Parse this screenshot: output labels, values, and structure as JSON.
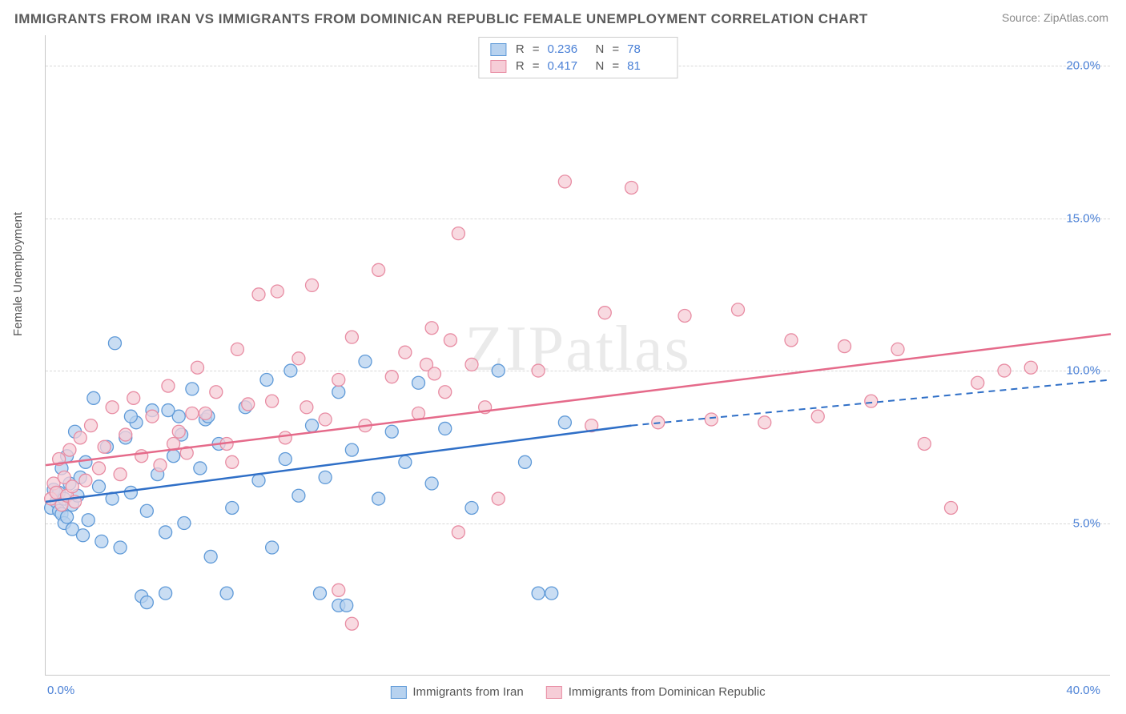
{
  "title": "IMMIGRANTS FROM IRAN VS IMMIGRANTS FROM DOMINICAN REPUBLIC FEMALE UNEMPLOYMENT CORRELATION CHART",
  "source": "Source: ZipAtlas.com",
  "watermark": "ZIPatlas",
  "ylabel": "Female Unemployment",
  "xlim": [
    0,
    40
  ],
  "ylim": [
    0,
    21
  ],
  "xtick_labels": {
    "min": "0.0%",
    "max": "40.0%"
  },
  "ytick_positions": [
    5,
    10,
    15,
    20
  ],
  "ytick_labels": [
    "5.0%",
    "10.0%",
    "15.0%",
    "20.0%"
  ],
  "series": [
    {
      "name": "Immigrants from Iran",
      "color_fill": "#b7d2ef",
      "color_stroke": "#5f9ad8",
      "line_color": "#2f6fc7",
      "R": "0.236",
      "N": "78",
      "marker_radius": 8,
      "trend": {
        "x1": 0,
        "y1": 5.7,
        "x2": 22,
        "y2": 8.2,
        "dash_x2": 40,
        "dash_y2": 9.7
      },
      "points": [
        [
          0.2,
          5.5
        ],
        [
          0.3,
          6.1
        ],
        [
          0.4,
          5.7
        ],
        [
          0.5,
          5.4
        ],
        [
          0.5,
          6.0
        ],
        [
          0.6,
          5.3
        ],
        [
          0.6,
          6.8
        ],
        [
          0.7,
          5.0
        ],
        [
          0.7,
          5.8
        ],
        [
          0.8,
          7.2
        ],
        [
          0.8,
          5.2
        ],
        [
          0.9,
          6.3
        ],
        [
          1.0,
          5.6
        ],
        [
          1.0,
          4.8
        ],
        [
          1.1,
          8.0
        ],
        [
          1.2,
          5.9
        ],
        [
          1.3,
          6.5
        ],
        [
          1.4,
          4.6
        ],
        [
          1.5,
          7.0
        ],
        [
          1.6,
          5.1
        ],
        [
          1.8,
          9.1
        ],
        [
          2.0,
          6.2
        ],
        [
          2.1,
          4.4
        ],
        [
          2.3,
          7.5
        ],
        [
          2.5,
          5.8
        ],
        [
          2.6,
          10.9
        ],
        [
          2.8,
          4.2
        ],
        [
          3.0,
          7.8
        ],
        [
          3.2,
          6.0
        ],
        [
          3.4,
          8.3
        ],
        [
          3.6,
          2.6
        ],
        [
          3.8,
          5.4
        ],
        [
          4.0,
          8.7
        ],
        [
          4.2,
          6.6
        ],
        [
          4.5,
          2.7
        ],
        [
          4.5,
          4.7
        ],
        [
          4.8,
          7.2
        ],
        [
          5.0,
          8.5
        ],
        [
          5.2,
          5.0
        ],
        [
          5.5,
          9.4
        ],
        [
          5.8,
          6.8
        ],
        [
          6.0,
          8.4
        ],
        [
          6.2,
          3.9
        ],
        [
          6.5,
          7.6
        ],
        [
          6.8,
          2.7
        ],
        [
          7.0,
          5.5
        ],
        [
          7.5,
          8.8
        ],
        [
          8.0,
          6.4
        ],
        [
          8.3,
          9.7
        ],
        [
          8.5,
          4.2
        ],
        [
          9.0,
          7.1
        ],
        [
          9.2,
          10.0
        ],
        [
          9.5,
          5.9
        ],
        [
          10.0,
          8.2
        ],
        [
          10.3,
          2.7
        ],
        [
          10.5,
          6.5
        ],
        [
          11.0,
          9.3
        ],
        [
          11.0,
          2.3
        ],
        [
          11.3,
          2.3
        ],
        [
          11.5,
          7.4
        ],
        [
          12.0,
          10.3
        ],
        [
          12.5,
          5.8
        ],
        [
          13.0,
          8.0
        ],
        [
          13.5,
          7.0
        ],
        [
          14.0,
          9.6
        ],
        [
          14.5,
          6.3
        ],
        [
          15.0,
          8.1
        ],
        [
          16.0,
          5.5
        ],
        [
          17.0,
          10.0
        ],
        [
          18.0,
          7.0
        ],
        [
          18.5,
          2.7
        ],
        [
          19.0,
          2.7
        ],
        [
          19.5,
          8.3
        ],
        [
          3.8,
          2.4
        ],
        [
          3.2,
          8.5
        ],
        [
          4.6,
          8.7
        ],
        [
          5.1,
          7.9
        ],
        [
          6.1,
          8.5
        ]
      ]
    },
    {
      "name": "Immigrants from Dominican Republic",
      "color_fill": "#f6cdd7",
      "color_stroke": "#e88ca3",
      "line_color": "#e56a8a",
      "R": "0.417",
      "N": "81",
      "marker_radius": 8,
      "trend": {
        "x1": 0,
        "y1": 6.9,
        "x2": 40,
        "y2": 11.2
      },
      "points": [
        [
          0.2,
          5.8
        ],
        [
          0.3,
          6.3
        ],
        [
          0.4,
          6.0
        ],
        [
          0.5,
          7.1
        ],
        [
          0.6,
          5.6
        ],
        [
          0.7,
          6.5
        ],
        [
          0.8,
          5.9
        ],
        [
          0.9,
          7.4
        ],
        [
          1.0,
          6.2
        ],
        [
          1.1,
          5.7
        ],
        [
          1.3,
          7.8
        ],
        [
          1.5,
          6.4
        ],
        [
          1.7,
          8.2
        ],
        [
          2.0,
          6.8
        ],
        [
          2.2,
          7.5
        ],
        [
          2.5,
          8.8
        ],
        [
          2.8,
          6.6
        ],
        [
          3.0,
          7.9
        ],
        [
          3.3,
          9.1
        ],
        [
          3.6,
          7.2
        ],
        [
          4.0,
          8.5
        ],
        [
          4.3,
          6.9
        ],
        [
          4.6,
          9.5
        ],
        [
          5.0,
          8.0
        ],
        [
          5.3,
          7.3
        ],
        [
          5.7,
          10.1
        ],
        [
          6.0,
          8.6
        ],
        [
          6.4,
          9.3
        ],
        [
          6.8,
          7.6
        ],
        [
          7.2,
          10.7
        ],
        [
          7.6,
          8.9
        ],
        [
          8.0,
          12.5
        ],
        [
          8.5,
          9.0
        ],
        [
          9.0,
          7.8
        ],
        [
          9.5,
          10.4
        ],
        [
          10.0,
          12.8
        ],
        [
          10.5,
          8.4
        ],
        [
          11.0,
          9.7
        ],
        [
          11.5,
          11.1
        ],
        [
          11.0,
          2.8
        ],
        [
          12.0,
          8.2
        ],
        [
          12.5,
          13.3
        ],
        [
          13.0,
          9.8
        ],
        [
          13.5,
          10.6
        ],
        [
          14.0,
          8.6
        ],
        [
          14.5,
          11.4
        ],
        [
          15.0,
          9.3
        ],
        [
          15.5,
          14.5
        ],
        [
          16.0,
          10.2
        ],
        [
          16.5,
          8.8
        ],
        [
          17.0,
          5.8
        ],
        [
          15.5,
          4.7
        ],
        [
          18.5,
          10.0
        ],
        [
          19.5,
          16.2
        ],
        [
          20.5,
          8.2
        ],
        [
          21.0,
          11.9
        ],
        [
          22.0,
          16.0
        ],
        [
          23.0,
          8.3
        ],
        [
          24.0,
          11.8
        ],
        [
          25.0,
          8.4
        ],
        [
          26.0,
          12.0
        ],
        [
          27.0,
          8.3
        ],
        [
          28.0,
          11.0
        ],
        [
          29.0,
          8.5
        ],
        [
          30.0,
          10.8
        ],
        [
          31.0,
          9.0
        ],
        [
          32.0,
          10.7
        ],
        [
          33.0,
          7.6
        ],
        [
          34.0,
          5.5
        ],
        [
          35.0,
          9.6
        ],
        [
          36.0,
          10.0
        ],
        [
          37.0,
          10.1
        ],
        [
          11.5,
          1.7
        ],
        [
          14.3,
          10.2
        ],
        [
          14.6,
          9.9
        ],
        [
          15.2,
          11.0
        ],
        [
          9.8,
          8.8
        ],
        [
          8.7,
          12.6
        ],
        [
          7.0,
          7.0
        ],
        [
          5.5,
          8.6
        ],
        [
          4.8,
          7.6
        ]
      ]
    }
  ],
  "legend_bottom": [
    {
      "label": "Immigrants from Iran",
      "fill": "#b7d2ef",
      "stroke": "#5f9ad8"
    },
    {
      "label": "Immigrants from Dominican Republic",
      "fill": "#f6cdd7",
      "stroke": "#e88ca3"
    }
  ]
}
